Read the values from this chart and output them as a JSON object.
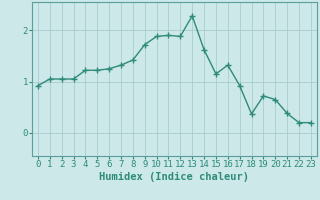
{
  "x": [
    0,
    1,
    2,
    3,
    4,
    5,
    6,
    7,
    8,
    9,
    10,
    11,
    12,
    13,
    14,
    15,
    16,
    17,
    18,
    19,
    20,
    21,
    22,
    23
  ],
  "y": [
    0.92,
    1.05,
    1.05,
    1.05,
    1.22,
    1.22,
    1.25,
    1.32,
    1.42,
    1.72,
    1.88,
    1.9,
    1.88,
    2.28,
    1.62,
    1.15,
    1.32,
    0.92,
    0.37,
    0.72,
    0.65,
    0.38,
    0.2,
    0.2
  ],
  "line_color": "#2e8b7a",
  "marker": "+",
  "marker_size": 4,
  "bg_color": "#cce8e8",
  "grid_color": "#aacccc",
  "xlabel": "Humidex (Indice chaleur)",
  "xlim": [
    -0.5,
    23.5
  ],
  "ylim": [
    -0.45,
    2.55
  ],
  "yticks": [
    0,
    1,
    2
  ],
  "xticks": [
    0,
    1,
    2,
    3,
    4,
    5,
    6,
    7,
    8,
    9,
    10,
    11,
    12,
    13,
    14,
    15,
    16,
    17,
    18,
    19,
    20,
    21,
    22,
    23
  ],
  "tick_fontsize": 6.5,
  "xlabel_fontsize": 7.5,
  "linewidth": 1.0
}
